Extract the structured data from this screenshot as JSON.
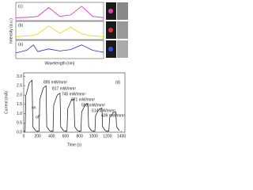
{
  "chart_data": [
    {
      "type": "line",
      "x_label": "Wavelength (nm)",
      "y_label": "Intensity (a.u.)",
      "panel_labels": [
        "(c)",
        "(b)",
        "(a)"
      ],
      "x": [
        400,
        450,
        480,
        500,
        550,
        600,
        650,
        700,
        750,
        800
      ],
      "xlim": [
        400,
        800
      ],
      "ylim": [
        0,
        1
      ],
      "series": [
        {
          "color": "#e020c0",
          "values": [
            0.1,
            0.12,
            0.15,
            0.2,
            0.85,
            0.2,
            0.3,
            0.95,
            0.2,
            0.1
          ]
        },
        {
          "color": "#e8d800",
          "values": [
            0.1,
            0.15,
            0.2,
            0.3,
            0.9,
            0.35,
            0.8,
            0.3,
            0.15,
            0.1
          ]
        },
        {
          "color": "#2030d0",
          "values": [
            0.3,
            0.5,
            0.9,
            0.4,
            0.6,
            0.45,
            0.55,
            0.9,
            0.5,
            0.35
          ]
        }
      ]
    },
    {
      "type": "line",
      "x_label": "Time (s)",
      "y_label": "Current (mA)",
      "panel_label": "(d)",
      "x": [
        0,
        20,
        30,
        80,
        120,
        130,
        170,
        220,
        230,
        280,
        320,
        330,
        370,
        420,
        430,
        480,
        520,
        530,
        570,
        620,
        630,
        680,
        720,
        730,
        770,
        820,
        830,
        880,
        920,
        930,
        970,
        1020,
        1030,
        1080,
        1120,
        1130,
        1170,
        1220,
        1230,
        1280,
        1320,
        1330,
        1370
      ],
      "xlim": [
        0,
        1450
      ],
      "ylim": [
        0,
        3.2
      ],
      "xticks": [
        0,
        200,
        400,
        600,
        800,
        1000,
        1200,
        1400
      ],
      "yticks": [
        {
          "value": 0,
          "label": "0.0"
        },
        {
          "value": 0.5,
          "label": "0.5"
        },
        {
          "value": 1,
          "label": "1.0"
        },
        {
          "value": 1.5,
          "label": "1.5"
        },
        {
          "value": 2,
          "label": "2.0"
        },
        {
          "value": 2.5,
          "label": "2.5"
        },
        {
          "value": 3,
          "label": "3.0"
        }
      ],
      "series": [
        {
          "color": "#111111",
          "values": [
            0.05,
            0.05,
            1.96,
            2.66,
            2.8,
            0.3,
            0.08,
            0.05,
            1.75,
            2.38,
            2.5,
            0.3,
            0.08,
            0.05,
            1.47,
            2.0,
            2.1,
            0.3,
            0.08,
            0.05,
            1.26,
            1.71,
            1.8,
            0.3,
            0.08,
            0.05,
            1.09,
            1.47,
            1.55,
            0.3,
            0.08,
            0.05,
            0.91,
            1.24,
            1.3,
            0.3,
            0.08,
            0.05,
            0.77,
            1.05,
            1.1,
            0.3,
            0.08
          ]
        }
      ],
      "annotations": [
        "895 mW/mm²",
        "817 mW/mm²",
        "745 mW/mm²",
        "671 mW/mm²",
        "593 mW/mm²",
        "514 mW/mm²",
        "439 mW/mm²",
        "on",
        "off"
      ]
    }
  ]
}
